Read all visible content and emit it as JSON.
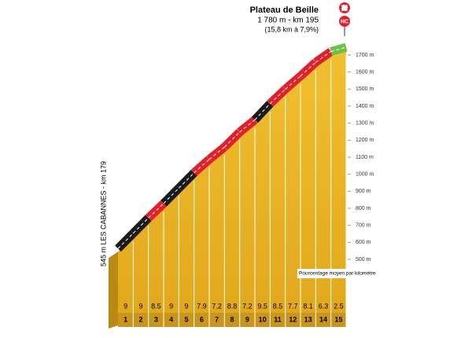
{
  "chart_data": {
    "type": "climb-profile",
    "title": "Plateau de Beille",
    "subtitle": "1 780 m - km 195",
    "note": "(15,8 km à 7,9%)",
    "badge": "HC",
    "start_label": "545 m LES CABANNES - km 179",
    "legend_label": "Pourcentage moyen par kilomètre",
    "start_altitude": 545,
    "categories": [
      "1",
      "2",
      "3",
      "4",
      "5",
      "6",
      "7",
      "8",
      "9",
      "10",
      "11",
      "12",
      "13",
      "14",
      "15"
    ],
    "values": [
      9,
      9,
      8.5,
      9,
      9,
      7.9,
      7.2,
      8.8,
      7.2,
      9.5,
      8.5,
      7.7,
      8.1,
      6.3,
      2.5
    ],
    "colors": [
      "#1a1a1a",
      "#1a1a1a",
      "#e0202a",
      "#1a1a1a",
      "#1a1a1a",
      "#e0202a",
      "#e0202a",
      "#e0202a",
      "#e0202a",
      "#1a1a1a",
      "#e0202a",
      "#e0202a",
      "#e0202a",
      "#e0202a",
      "#6cc04a"
    ],
    "ylim": [
      500,
      1700
    ],
    "yticks": [
      {
        "value": 500,
        "label": "500 m"
      },
      {
        "value": 600,
        "label": "600 m"
      },
      {
        "value": 700,
        "label": "700 m"
      },
      {
        "value": 800,
        "label": "800 m"
      },
      {
        "value": 900,
        "label": "900 m"
      },
      {
        "value": 1000,
        "label": "1000 m"
      },
      {
        "value": 1100,
        "label": "1100 m"
      },
      {
        "value": 1200,
        "label": "1200 m"
      },
      {
        "value": 1300,
        "label": "1300 m"
      },
      {
        "value": 1400,
        "label": "1400 m"
      },
      {
        "value": 1500,
        "label": "1500 m"
      },
      {
        "value": 1600,
        "label": "1600 m"
      },
      {
        "value": 1700,
        "label": "1700 m"
      }
    ]
  }
}
